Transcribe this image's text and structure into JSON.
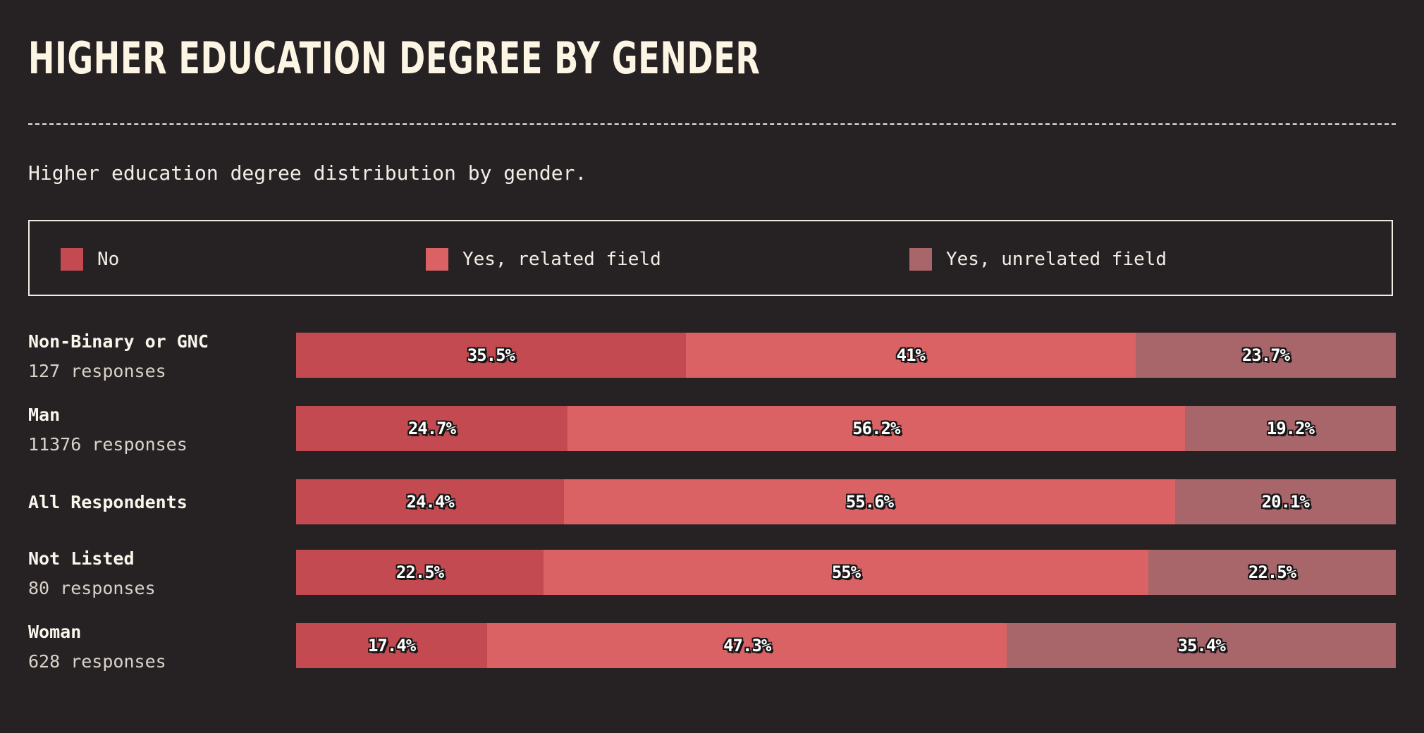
{
  "title": "HIGHER EDUCATION DEGREE BY GENDER",
  "subtitle": "Higher education degree distribution by gender.",
  "chart_data": {
    "type": "bar",
    "orientation": "horizontal",
    "stacked": true,
    "percent": true,
    "title": "HIGHER EDUCATION DEGREE BY GENDER",
    "subtitle": "Higher education degree distribution by gender.",
    "legend_position": "top",
    "categories": [
      {
        "name": "Non-Binary or GNC",
        "count": "127 responses"
      },
      {
        "name": "Man",
        "count": "11376 responses"
      },
      {
        "name": "All Respondents",
        "count": ""
      },
      {
        "name": "Not Listed",
        "count": "80 responses"
      },
      {
        "name": "Woman",
        "count": "628 responses"
      }
    ],
    "series": [
      {
        "name": "No",
        "color": "#c34a51",
        "values": [
          35.5,
          24.7,
          24.4,
          22.5,
          17.4
        ],
        "labels": [
          "35.5%",
          "24.7%",
          "24.4%",
          "22.5%",
          "17.4%"
        ]
      },
      {
        "name": "Yes, related field",
        "color": "#db6264",
        "values": [
          41,
          56.2,
          55.6,
          55,
          47.3
        ],
        "labels": [
          "41%",
          "56.2%",
          "55.6%",
          "55%",
          "47.3%"
        ]
      },
      {
        "name": "Yes, unrelated field",
        "color": "#a8666a",
        "values": [
          23.7,
          19.2,
          20.1,
          22.5,
          35.4
        ],
        "labels": [
          "23.7%",
          "19.2%",
          "20.1%",
          "22.5%",
          "35.4%"
        ]
      }
    ]
  }
}
